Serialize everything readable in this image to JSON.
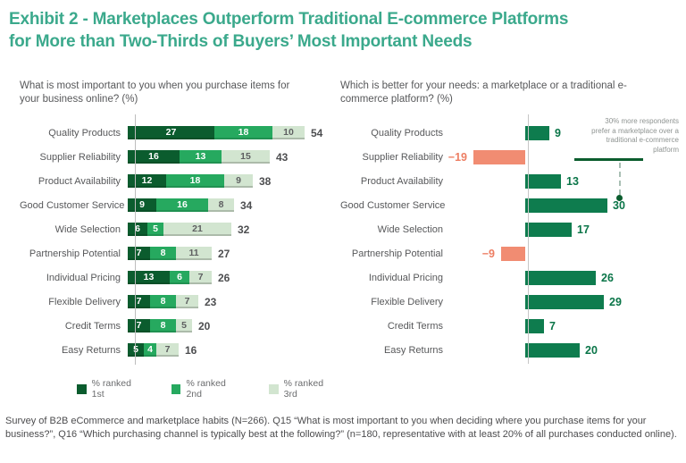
{
  "title": {
    "line1": "Exhibit 2 - Marketplaces Outperform Traditional E-commerce Platforms",
    "line2": "for More than Two-Thirds of Buyers’ Most Important Needs"
  },
  "footnote": "Survey of B2B eCommerce and marketplace habits (N=266). Q15 “What is most important to you when deciding where you purchase items for your business?”, Q16 “Which purchasing channel is typically best at the following?” (n=180, representative with at least 20% of all purchases conducted online).",
  "colors": {
    "title_teal": "#3BA98C",
    "rank1_dark_green": "#0B5C2E",
    "rank2_mid_green": "#26A95F",
    "rank3_light_green": "#D2E5D0",
    "marketplace_green": "#0E7C4E",
    "negative_salmon": "#F18C72",
    "label_gray": "#57585A",
    "axis_gray": "#BDBDBD",
    "annotation_gray": "#8F9492"
  },
  "chart_data": [
    {
      "type": "bar",
      "orientation": "horizontal",
      "stacked": true,
      "title": "What is most important to you when you purchase items for your business online? (%)",
      "categories": [
        "Quality Products",
        "Supplier Reliability",
        "Product Availability",
        "Good Customer Service",
        "Wide Selection",
        "Partnership Potential",
        "Individual Pricing",
        "Flexible Delivery",
        "Credit Terms",
        "Easy Returns"
      ],
      "series": [
        {
          "name": "% ranked 1st",
          "values": [
            27,
            16,
            12,
            9,
            6,
            7,
            13,
            7,
            7,
            5
          ]
        },
        {
          "name": "% ranked 2nd",
          "values": [
            18,
            13,
            18,
            16,
            5,
            8,
            6,
            8,
            8,
            4
          ]
        },
        {
          "name": "% ranked 3rd",
          "values": [
            10,
            15,
            9,
            8,
            21,
            11,
            7,
            7,
            5,
            7
          ]
        }
      ],
      "totals": [
        54,
        43,
        38,
        34,
        32,
        27,
        26,
        23,
        20,
        16
      ],
      "xlim": [
        0,
        55
      ],
      "legend_position": "bottom",
      "grid": false
    },
    {
      "type": "bar",
      "orientation": "horizontal",
      "diverging": true,
      "title": "Which is better for your needs: a marketplace or a traditional e-commerce platform? (%)",
      "categories": [
        "Quality Products",
        "Supplier Reliability",
        "Product Availability",
        "Good Customer Service",
        "Wide Selection",
        "Partnership Potential",
        "Individual Pricing",
        "Flexible Delivery",
        "Credit Terms",
        "Easy Returns"
      ],
      "values": [
        9,
        -19,
        13,
        30,
        17,
        -9,
        26,
        29,
        7,
        20
      ],
      "xlim": [
        -25,
        45
      ],
      "annotation": "30% more respondents prefer a marketplace over a traditional e-commerce platform",
      "annotation_target_value": 30,
      "grid": false
    }
  ]
}
